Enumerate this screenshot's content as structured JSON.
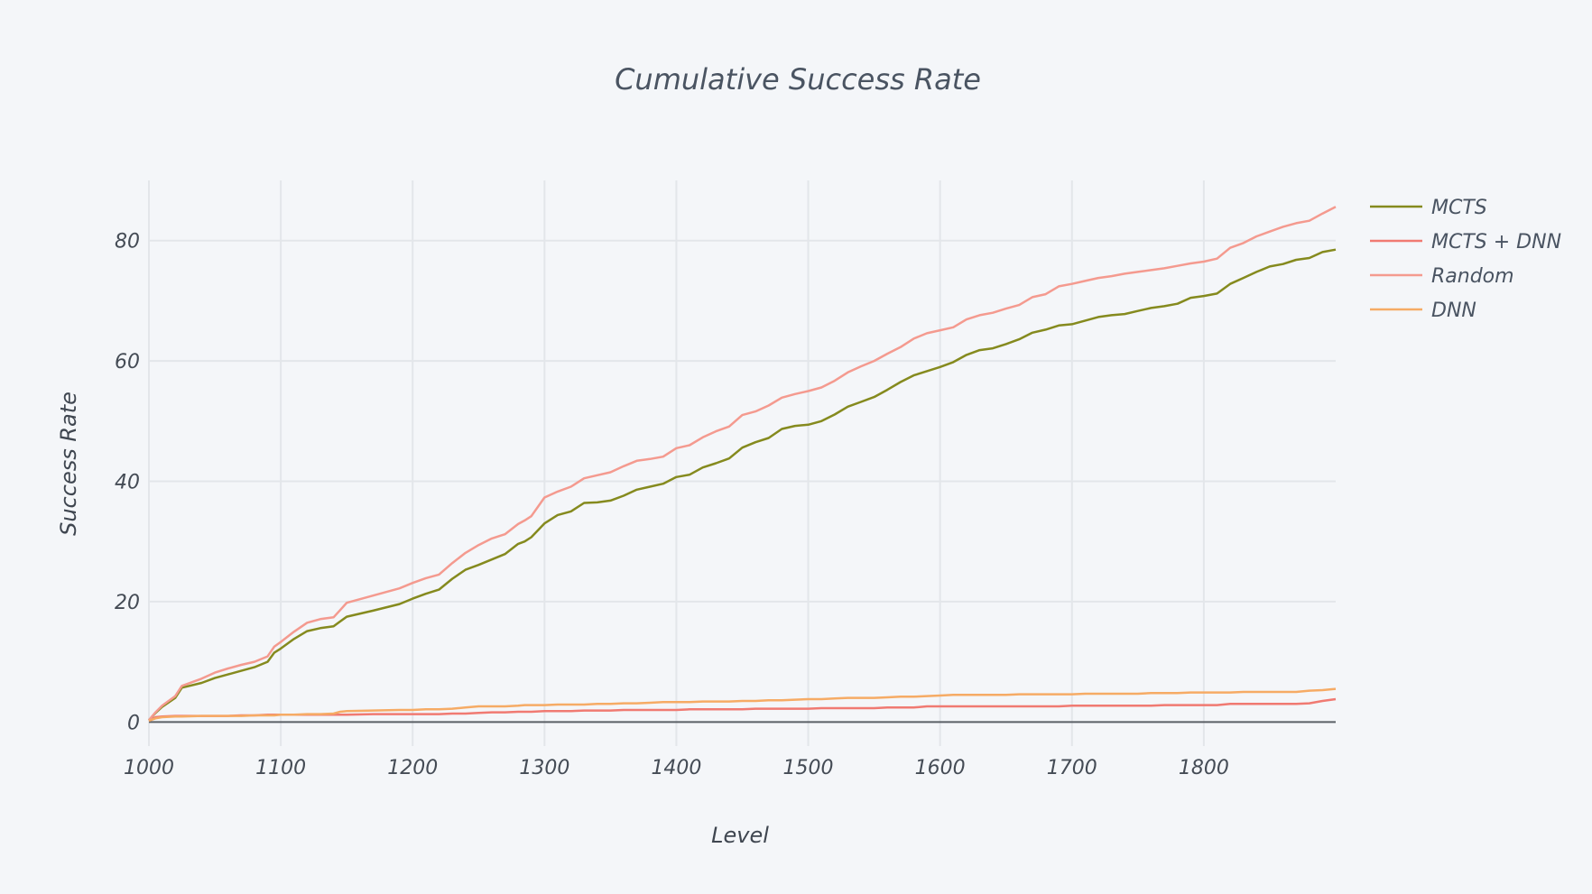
{
  "chart_data": {
    "type": "line",
    "title": "Cumulative Success Rate",
    "xlabel": "Level",
    "ylabel": "Success Rate",
    "xlim": [
      1000,
      1900
    ],
    "ylim": [
      -4,
      90
    ],
    "x_ticks": [
      1000,
      1100,
      1200,
      1300,
      1400,
      1500,
      1600,
      1700,
      1800
    ],
    "y_ticks": [
      0,
      20,
      40,
      60,
      80
    ],
    "grid": true,
    "legend_position": "top-right",
    "series": [
      {
        "name": "MCTS",
        "color": "#858a1e",
        "x": [
          1000,
          1005,
          1010,
          1020,
          1025,
          1040,
          1050,
          1060,
          1070,
          1080,
          1090,
          1095,
          1100,
          1110,
          1120,
          1130,
          1140,
          1145,
          1150,
          1170,
          1190,
          1200,
          1210,
          1220,
          1230,
          1240,
          1250,
          1260,
          1270,
          1280,
          1285,
          1290,
          1300,
          1310,
          1320,
          1330,
          1340,
          1350,
          1360,
          1370,
          1380,
          1390,
          1400,
          1410,
          1420,
          1430,
          1440,
          1450,
          1460,
          1470,
          1480,
          1490,
          1500,
          1510,
          1520,
          1530,
          1540,
          1550,
          1560,
          1570,
          1580,
          1590,
          1600,
          1610,
          1620,
          1630,
          1640,
          1650,
          1660,
          1670,
          1680,
          1690,
          1700,
          1710,
          1720,
          1730,
          1740,
          1750,
          1760,
          1770,
          1780,
          1790,
          1800,
          1810,
          1820,
          1830,
          1840,
          1850,
          1860,
          1870,
          1880,
          1890,
          1900
        ],
        "values": [
          0.3,
          1.5,
          2.5,
          4,
          5.7,
          6.5,
          7.3,
          7.9,
          8.5,
          9.1,
          10,
          11.5,
          12.2,
          13.8,
          15.1,
          15.6,
          15.9,
          16.7,
          17.5,
          18.5,
          19.6,
          20.5,
          21.3,
          22,
          23.8,
          25.3,
          26.1,
          27,
          27.9,
          29.6,
          30,
          30.7,
          33,
          34.4,
          35,
          36.4,
          36.5,
          36.8,
          37.6,
          38.6,
          39.1,
          39.6,
          40.7,
          41.1,
          42.3,
          43,
          43.8,
          45.6,
          46.5,
          47.2,
          48.7,
          49.2,
          49.4,
          50,
          51.1,
          52.4,
          53.2,
          54,
          55.2,
          56.5,
          57.6,
          58.3,
          59,
          59.8,
          61,
          61.8,
          62.1,
          62.8,
          63.6,
          64.7,
          65.2,
          65.9,
          66.1,
          66.7,
          67.3,
          67.6,
          67.8,
          68.3,
          68.8,
          69.1,
          69.5,
          70.5,
          70.8,
          71.2,
          72.8,
          73.8,
          74.8,
          75.7,
          76.1,
          76.8,
          77.1,
          78.1,
          78.5
        ]
      },
      {
        "name": "MCTS + DNN",
        "color": "#f07a72",
        "x": [
          1000,
          1005,
          1010,
          1020,
          1025,
          1040,
          1050,
          1060,
          1070,
          1080,
          1090,
          1095,
          1100,
          1110,
          1120,
          1130,
          1140,
          1145,
          1150,
          1170,
          1190,
          1200,
          1210,
          1220,
          1230,
          1240,
          1250,
          1260,
          1270,
          1280,
          1285,
          1290,
          1300,
          1310,
          1320,
          1330,
          1340,
          1350,
          1360,
          1370,
          1380,
          1390,
          1400,
          1410,
          1420,
          1430,
          1440,
          1450,
          1460,
          1470,
          1480,
          1490,
          1500,
          1510,
          1520,
          1530,
          1540,
          1550,
          1560,
          1570,
          1580,
          1590,
          1600,
          1610,
          1620,
          1630,
          1640,
          1650,
          1660,
          1670,
          1680,
          1690,
          1700,
          1710,
          1720,
          1730,
          1740,
          1750,
          1760,
          1770,
          1780,
          1790,
          1800,
          1810,
          1820,
          1830,
          1840,
          1850,
          1860,
          1870,
          1880,
          1890,
          1900
        ],
        "values": [
          0.2,
          0.8,
          0.9,
          1,
          1,
          1,
          1,
          1,
          1.1,
          1.1,
          1.2,
          1.2,
          1.2,
          1.2,
          1.2,
          1.2,
          1.2,
          1.2,
          1.2,
          1.3,
          1.3,
          1.3,
          1.3,
          1.3,
          1.4,
          1.4,
          1.5,
          1.6,
          1.6,
          1.7,
          1.7,
          1.7,
          1.8,
          1.8,
          1.8,
          1.9,
          1.9,
          1.9,
          2,
          2,
          2,
          2,
          2,
          2.1,
          2.1,
          2.1,
          2.1,
          2.1,
          2.2,
          2.2,
          2.2,
          2.2,
          2.2,
          2.3,
          2.3,
          2.3,
          2.3,
          2.3,
          2.4,
          2.4,
          2.4,
          2.6,
          2.6,
          2.6,
          2.6,
          2.6,
          2.6,
          2.6,
          2.6,
          2.6,
          2.6,
          2.6,
          2.7,
          2.7,
          2.7,
          2.7,
          2.7,
          2.7,
          2.7,
          2.8,
          2.8,
          2.8,
          2.8,
          2.8,
          3,
          3,
          3,
          3,
          3,
          3,
          3.1,
          3.5,
          3.8
        ]
      },
      {
        "name": "Random",
        "color": "#f49a8f",
        "x": [
          1000,
          1005,
          1010,
          1020,
          1025,
          1040,
          1050,
          1060,
          1070,
          1080,
          1090,
          1095,
          1100,
          1110,
          1120,
          1130,
          1140,
          1145,
          1150,
          1170,
          1190,
          1200,
          1210,
          1220,
          1230,
          1240,
          1250,
          1260,
          1270,
          1280,
          1285,
          1290,
          1300,
          1310,
          1320,
          1330,
          1340,
          1350,
          1360,
          1370,
          1380,
          1390,
          1400,
          1410,
          1420,
          1430,
          1440,
          1450,
          1460,
          1470,
          1480,
          1490,
          1500,
          1510,
          1520,
          1530,
          1540,
          1550,
          1560,
          1570,
          1580,
          1590,
          1600,
          1610,
          1620,
          1630,
          1640,
          1650,
          1660,
          1670,
          1680,
          1690,
          1700,
          1710,
          1720,
          1730,
          1740,
          1750,
          1760,
          1770,
          1780,
          1790,
          1800,
          1810,
          1820,
          1830,
          1840,
          1850,
          1860,
          1870,
          1880,
          1890,
          1900
        ],
        "values": [
          0.3,
          1.6,
          2.7,
          4.3,
          6,
          7.2,
          8.2,
          8.9,
          9.5,
          10,
          10.9,
          12.5,
          13.3,
          15,
          16.5,
          17.1,
          17.4,
          18.6,
          19.8,
          21,
          22.2,
          23.1,
          23.9,
          24.5,
          26.4,
          28.1,
          29.4,
          30.5,
          31.2,
          32.9,
          33.5,
          34.2,
          37.3,
          38.3,
          39.1,
          40.5,
          41,
          41.5,
          42.5,
          43.4,
          43.7,
          44.1,
          45.5,
          46,
          47.3,
          48.3,
          49.1,
          51,
          51.6,
          52.6,
          53.9,
          54.5,
          55,
          55.6,
          56.7,
          58.1,
          59.1,
          60,
          61.2,
          62.3,
          63.7,
          64.6,
          65.1,
          65.6,
          66.9,
          67.6,
          68,
          68.7,
          69.3,
          70.6,
          71.1,
          72.4,
          72.8,
          73.3,
          73.8,
          74.1,
          74.5,
          74.8,
          75.1,
          75.4,
          75.8,
          76.2,
          76.5,
          77,
          78.8,
          79.6,
          80.7,
          81.5,
          82.3,
          82.9,
          83.3,
          84.5,
          85.6
        ]
      },
      {
        "name": "DNN",
        "color": "#f6ab65",
        "x": [
          1000,
          1005,
          1010,
          1020,
          1025,
          1040,
          1050,
          1060,
          1070,
          1080,
          1090,
          1095,
          1100,
          1110,
          1120,
          1130,
          1140,
          1145,
          1150,
          1170,
          1190,
          1200,
          1210,
          1220,
          1230,
          1240,
          1250,
          1260,
          1270,
          1280,
          1285,
          1290,
          1300,
          1310,
          1320,
          1330,
          1340,
          1350,
          1360,
          1370,
          1380,
          1390,
          1400,
          1410,
          1420,
          1430,
          1440,
          1450,
          1460,
          1470,
          1480,
          1490,
          1500,
          1510,
          1520,
          1530,
          1540,
          1550,
          1560,
          1570,
          1580,
          1590,
          1600,
          1610,
          1620,
          1630,
          1640,
          1650,
          1660,
          1670,
          1680,
          1690,
          1700,
          1710,
          1720,
          1730,
          1740,
          1750,
          1760,
          1770,
          1780,
          1790,
          1800,
          1810,
          1820,
          1830,
          1840,
          1850,
          1860,
          1870,
          1880,
          1890,
          1900
        ],
        "values": [
          0.2,
          0.6,
          0.8,
          0.9,
          0.9,
          1,
          1,
          1,
          1,
          1.1,
          1.1,
          1.1,
          1.2,
          1.2,
          1.3,
          1.3,
          1.4,
          1.7,
          1.8,
          1.9,
          2,
          2,
          2.1,
          2.1,
          2.2,
          2.4,
          2.6,
          2.6,
          2.6,
          2.7,
          2.8,
          2.8,
          2.8,
          2.9,
          2.9,
          2.9,
          3,
          3,
          3.1,
          3.1,
          3.2,
          3.3,
          3.3,
          3.3,
          3.4,
          3.4,
          3.4,
          3.5,
          3.5,
          3.6,
          3.6,
          3.7,
          3.8,
          3.8,
          3.9,
          4,
          4,
          4,
          4.1,
          4.2,
          4.2,
          4.3,
          4.4,
          4.5,
          4.5,
          4.5,
          4.5,
          4.5,
          4.6,
          4.6,
          4.6,
          4.6,
          4.6,
          4.7,
          4.7,
          4.7,
          4.7,
          4.7,
          4.8,
          4.8,
          4.8,
          4.9,
          4.9,
          4.9,
          4.9,
          5,
          5,
          5,
          5,
          5,
          5.2,
          5.3,
          5.5
        ]
      }
    ]
  }
}
